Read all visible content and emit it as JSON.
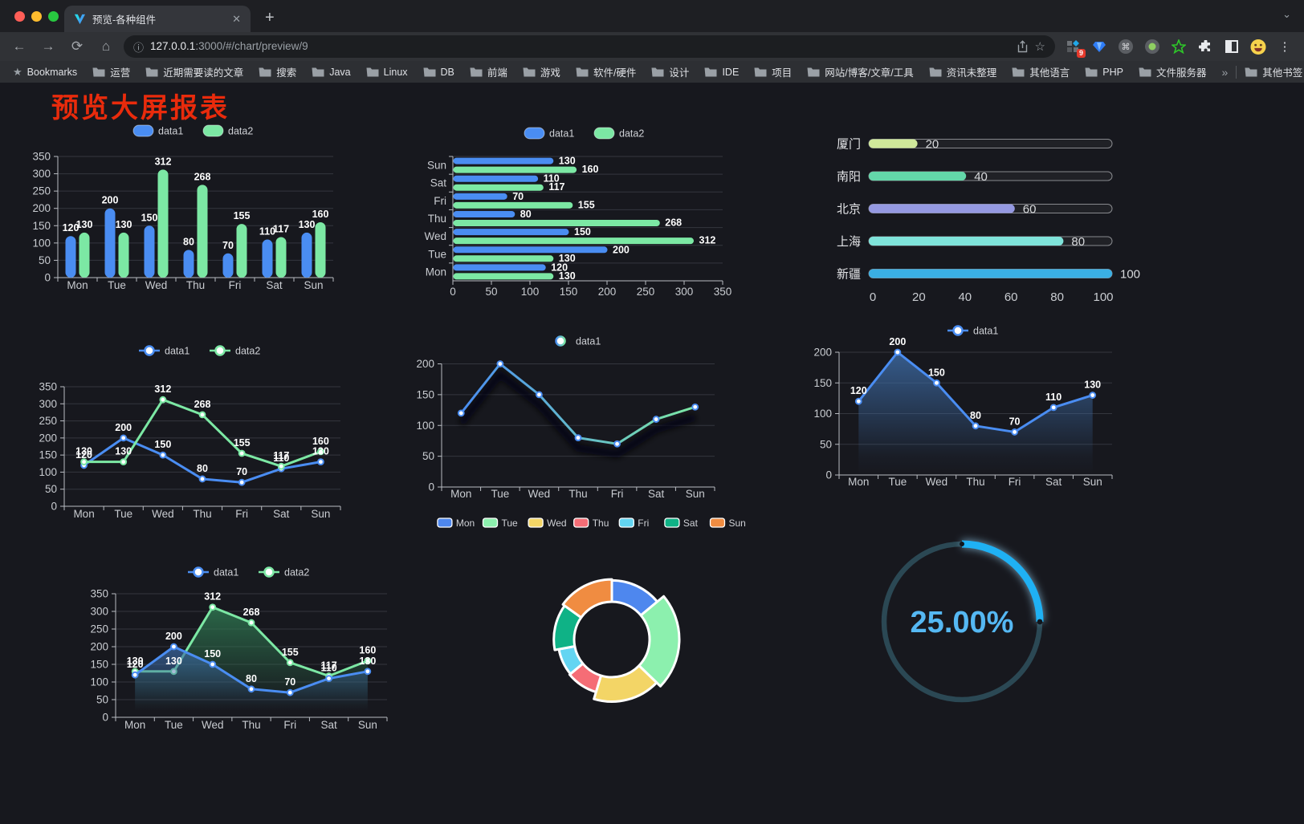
{
  "browser": {
    "tab": {
      "title": "预览-各种组件"
    },
    "url": {
      "host": "127.0.0.1",
      "rest": ":3000/#/chart/preview/9"
    },
    "extensions_badge": "9",
    "bookmarks_bar": {
      "star_label": "Bookmarks",
      "items": [
        "运营",
        "近期需要读的文章",
        "搜索",
        "Java",
        "Linux",
        "DB",
        "前端",
        "游戏",
        "软件/硬件",
        "设计",
        "IDE",
        "项目",
        "网站/博客/文章/工具",
        "资讯未整理",
        "其他语言",
        "PHP",
        "文件服务器"
      ],
      "other_bookmarks": "其他书签"
    }
  },
  "icons": {
    "back": "←",
    "forward": "→",
    "reload": "⟳",
    "home": "⌂",
    "close": "✕",
    "new_tab": "+",
    "menu": "⋮",
    "chevron_down": "⌄",
    "overflow": "»",
    "star_outline": "☆",
    "star_filled": "★",
    "info": "ⓘ"
  },
  "page": {
    "title": "预览大屏报表",
    "title_color": "#e92b0c",
    "background": "#17181e"
  },
  "chart_data": [
    {
      "name": "grouped-bar",
      "type": "bar",
      "categories": [
        "Mon",
        "Tue",
        "Wed",
        "Thu",
        "Fri",
        "Sat",
        "Sun"
      ],
      "series": [
        {
          "name": "data1",
          "color": "#4A8DF2",
          "values": [
            120,
            200,
            150,
            80,
            70,
            110,
            130
          ]
        },
        {
          "name": "data2",
          "color": "#7CE8A4",
          "values": [
            130,
            130,
            312,
            268,
            155,
            117,
            160
          ]
        }
      ],
      "ylim": [
        0,
        350
      ],
      "yticks": [
        0,
        50,
        100,
        150,
        200,
        250,
        300,
        350
      ],
      "legend": [
        "data1",
        "data2"
      ],
      "legend_position": "top",
      "grid": true
    },
    {
      "name": "horizontal-bar",
      "type": "bar-horizontal",
      "categories": [
        "Mon",
        "Tue",
        "Wed",
        "Thu",
        "Fri",
        "Sat",
        "Sun"
      ],
      "series": [
        {
          "name": "data1",
          "color": "#4A8DF2",
          "values": [
            120,
            200,
            150,
            80,
            70,
            110,
            130
          ]
        },
        {
          "name": "data2",
          "color": "#7CE8A4",
          "values": [
            130,
            130,
            312,
            268,
            155,
            117,
            160
          ]
        }
      ],
      "xlim": [
        0,
        350
      ],
      "xticks": [
        0,
        50,
        100,
        150,
        200,
        250,
        300,
        350
      ],
      "legend": [
        "data1",
        "data2"
      ],
      "legend_position": "top",
      "grid": true
    },
    {
      "name": "capsule-bar",
      "type": "bar-horizontal",
      "categories": [
        "厦门",
        "南阳",
        "北京",
        "上海",
        "新疆"
      ],
      "values": [
        20,
        40,
        60,
        80,
        100
      ],
      "colors": [
        "#CFE89A",
        "#63D7A9",
        "#9599E2",
        "#7FE3DA",
        "#3AAFE4"
      ],
      "xlim": [
        0,
        100
      ],
      "xticks": [
        0,
        20,
        40,
        60,
        80,
        100
      ],
      "grid": false
    },
    {
      "name": "dual-line",
      "type": "line",
      "categories": [
        "Mon",
        "Tue",
        "Wed",
        "Thu",
        "Fri",
        "Sat",
        "Sun"
      ],
      "series": [
        {
          "name": "data1",
          "color": "#4A8DF2",
          "values": [
            120,
            200,
            150,
            80,
            70,
            110,
            130
          ]
        },
        {
          "name": "data2",
          "color": "#7CE8A4",
          "values": [
            130,
            130,
            312,
            268,
            155,
            117,
            160
          ]
        }
      ],
      "ylim": [
        0,
        350
      ],
      "yticks": [
        0,
        50,
        100,
        150,
        200,
        250,
        300,
        350
      ],
      "legend": [
        "data1",
        "data2"
      ],
      "legend_position": "top",
      "grid": true,
      "point_labels": true
    },
    {
      "name": "gradient-line",
      "type": "line",
      "categories": [
        "Mon",
        "Tue",
        "Wed",
        "Thu",
        "Fri",
        "Sat",
        "Sun"
      ],
      "series": [
        {
          "name": "data1",
          "gradient": [
            "#4A8DF2",
            "#7CE8A4"
          ],
          "values": [
            120,
            200,
            150,
            80,
            70,
            110,
            130
          ]
        }
      ],
      "ylim": [
        0,
        200
      ],
      "yticks": [
        0,
        50,
        100,
        150,
        200
      ],
      "legend": [
        "data1"
      ],
      "legend_position": "top",
      "grid": true,
      "point_labels": false,
      "shadow": true
    },
    {
      "name": "area-line",
      "type": "area",
      "categories": [
        "Mon",
        "Tue",
        "Wed",
        "Thu",
        "Fri",
        "Sat",
        "Sun"
      ],
      "series": [
        {
          "name": "data1",
          "color": "#4A8DF2",
          "values": [
            120,
            200,
            150,
            80,
            70,
            110,
            130
          ]
        }
      ],
      "ylim": [
        0,
        200
      ],
      "yticks": [
        0,
        50,
        100,
        150,
        200
      ],
      "legend": [
        "data1"
      ],
      "legend_position": "top",
      "grid": true,
      "point_labels": true
    },
    {
      "name": "dual-area-line",
      "type": "area",
      "categories": [
        "Mon",
        "Tue",
        "Wed",
        "Thu",
        "Fri",
        "Sat",
        "Sun"
      ],
      "series": [
        {
          "name": "data1",
          "color": "#4A8DF2",
          "values": [
            120,
            200,
            150,
            80,
            70,
            110,
            130
          ]
        },
        {
          "name": "data2",
          "color": "#7CE8A4",
          "values": [
            130,
            130,
            312,
            268,
            155,
            117,
            160
          ]
        }
      ],
      "ylim": [
        0,
        350
      ],
      "yticks": [
        0,
        50,
        100,
        150,
        200,
        250,
        300,
        350
      ],
      "legend": [
        "data1",
        "data2"
      ],
      "legend_position": "top",
      "grid": true,
      "point_labels": true
    },
    {
      "name": "rose-pie",
      "type": "pie",
      "categories": [
        "Mon",
        "Tue",
        "Wed",
        "Thu",
        "Fri",
        "Sat",
        "Sun"
      ],
      "values": [
        120,
        200,
        150,
        80,
        70,
        110,
        130
      ],
      "colors": [
        "#4E87EE",
        "#8CF0AE",
        "#F3D566",
        "#F56D76",
        "#63D5F2",
        "#0FB286",
        "#F08C41"
      ],
      "legend_position": "top",
      "style": "rose-donut",
      "border_color": "#ffffff"
    },
    {
      "name": "progress-gauge",
      "type": "gauge",
      "percent": 25,
      "label": "25.00%",
      "color": "#1FB1F4",
      "track_color": "#2B4854",
      "text_color": "#55B8F3"
    }
  ],
  "theme": {
    "axis_line": "#b9bcc2",
    "grid_line": "#34363e",
    "tick_label": "#c9ccd1",
    "value_label": "#ffffff",
    "legend_label": "#cfd1d6"
  }
}
